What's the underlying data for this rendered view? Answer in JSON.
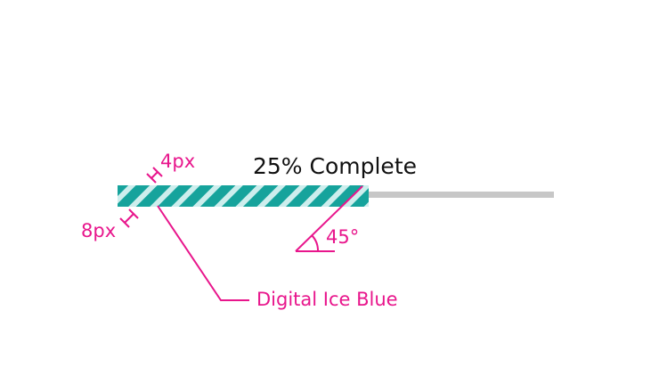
{
  "progress": {
    "label": "25% Complete",
    "fraction": 0.25,
    "stripe_color": "#16a39c",
    "stripe_light_color": "#cdeeed",
    "track_color": "#c7c7c7"
  },
  "annotations": {
    "color": "#e8168c",
    "gap_label": "4px",
    "stripe_width_label": "8px",
    "angle_label": "45°",
    "color_name_label": "Digital Ice Blue"
  }
}
